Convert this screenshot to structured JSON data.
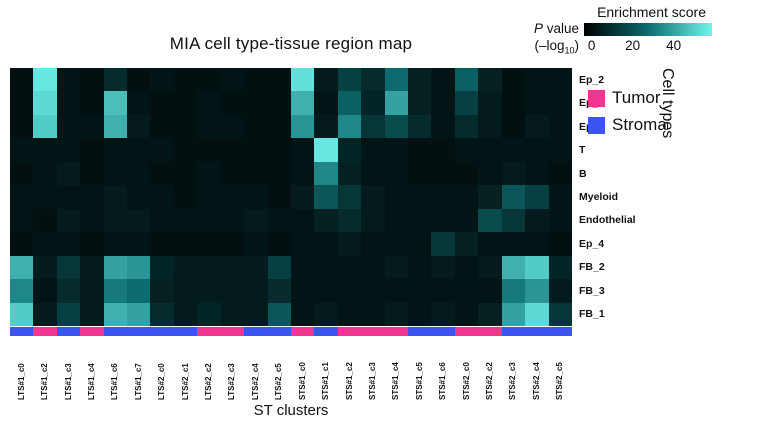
{
  "figure": {
    "title": "MIA cell type-tissue region map",
    "xlabel": "ST clusters",
    "right_axis_label": "Cell types"
  },
  "colorbar": {
    "title": "Enrichment score",
    "p_italic": "P",
    "p_rest": " value",
    "log_prefix": "(–log",
    "log_sub": "10",
    "log_suffix": ")",
    "ticks": [
      "0",
      "20",
      "40"
    ]
  },
  "legend": {
    "items": [
      {
        "label": "Tumor",
        "color": "#f0368f"
      },
      {
        "label": "Stroma",
        "color": "#3c55f0"
      }
    ]
  },
  "chart_data": {
    "type": "heatmap",
    "title": "MIA cell type-tissue region map",
    "xlabel": "ST clusters",
    "ylabel": "Cell types",
    "colorbar_title": "Enrichment score",
    "colorbar_sublabel": "P value (-log10)",
    "value_range": [
      0,
      40
    ],
    "colormap_stops": {
      "low": "#000000",
      "mid": "#0c6b6e",
      "high": "#72f5ef"
    },
    "rows": [
      "Ep_2",
      "Ep_1",
      "Ep_3",
      "T",
      "B",
      "Myeloid",
      "Endothelial",
      "Ep_4",
      "FB_2",
      "FB_3",
      "FB_1"
    ],
    "columns": [
      "LTS#1_c0",
      "LTS#1_c2",
      "LTS#1_c3",
      "LTS#1_c4",
      "LTS#1_c6",
      "LTS#1_c7",
      "LTS#2_c0",
      "LTS#2_c1",
      "LTS#2_c2",
      "LTS#2_c3",
      "LTS#2_c4",
      "LTS#2_c5",
      "STS#1_c0",
      "STS#1_c1",
      "STS#1_c2",
      "STS#1_c3",
      "STS#1_c4",
      "STS#1_c5",
      "STS#1_c6",
      "STS#2_c0",
      "STS#2_c2",
      "STS#2_c3",
      "STS#2_c4",
      "STS#2_c5"
    ],
    "column_regions": [
      "stroma",
      "tumor",
      "stroma",
      "tumor",
      "stroma",
      "stroma",
      "stroma",
      "stroma",
      "tumor",
      "tumor",
      "stroma",
      "stroma",
      "tumor",
      "stroma",
      "tumor",
      "tumor",
      "tumor",
      "stroma",
      "stroma",
      "tumor",
      "tumor",
      "stroma",
      "stroma",
      "stroma"
    ],
    "region_colors": {
      "tumor": "#f0368f",
      "stroma": "#3c55f0"
    },
    "values": [
      [
        3,
        38,
        4,
        3,
        8,
        3,
        4,
        3,
        3,
        4,
        3,
        3,
        37,
        5,
        12,
        8,
        20,
        6,
        4,
        18,
        6,
        3,
        4,
        4
      ],
      [
        3,
        36,
        4,
        3,
        32,
        4,
        3,
        3,
        4,
        3,
        3,
        3,
        30,
        4,
        18,
        7,
        28,
        6,
        4,
        12,
        5,
        3,
        4,
        4
      ],
      [
        3,
        34,
        4,
        4,
        30,
        5,
        3,
        3,
        4,
        4,
        3,
        3,
        26,
        5,
        24,
        10,
        14,
        8,
        4,
        8,
        5,
        3,
        5,
        4
      ],
      [
        4,
        4,
        4,
        3,
        4,
        4,
        4,
        3,
        3,
        3,
        3,
        3,
        4,
        38,
        7,
        4,
        4,
        3,
        3,
        4,
        4,
        4,
        4,
        4
      ],
      [
        3,
        4,
        5,
        3,
        4,
        4,
        3,
        3,
        4,
        3,
        3,
        3,
        4,
        24,
        6,
        4,
        4,
        3,
        3,
        3,
        4,
        5,
        4,
        3
      ],
      [
        4,
        4,
        4,
        4,
        5,
        4,
        4,
        3,
        4,
        4,
        4,
        3,
        5,
        16,
        10,
        5,
        4,
        4,
        4,
        4,
        6,
        16,
        12,
        4
      ],
      [
        4,
        3,
        5,
        4,
        5,
        5,
        4,
        4,
        4,
        4,
        5,
        4,
        4,
        6,
        8,
        5,
        4,
        4,
        4,
        4,
        14,
        10,
        5,
        4
      ],
      [
        3,
        4,
        4,
        3,
        4,
        4,
        3,
        3,
        3,
        3,
        4,
        3,
        4,
        4,
        5,
        4,
        4,
        4,
        10,
        6,
        4,
        4,
        4,
        3
      ],
      [
        30,
        5,
        10,
        5,
        28,
        26,
        7,
        5,
        5,
        5,
        5,
        12,
        4,
        4,
        4,
        4,
        5,
        4,
        5,
        4,
        5,
        30,
        34,
        7
      ],
      [
        24,
        4,
        8,
        5,
        22,
        20,
        6,
        5,
        5,
        5,
        5,
        8,
        4,
        4,
        4,
        4,
        4,
        4,
        4,
        4,
        4,
        22,
        26,
        5
      ],
      [
        34,
        5,
        12,
        5,
        30,
        28,
        8,
        5,
        7,
        5,
        5,
        16,
        4,
        5,
        4,
        4,
        5,
        4,
        5,
        4,
        6,
        28,
        36,
        10
      ]
    ]
  }
}
